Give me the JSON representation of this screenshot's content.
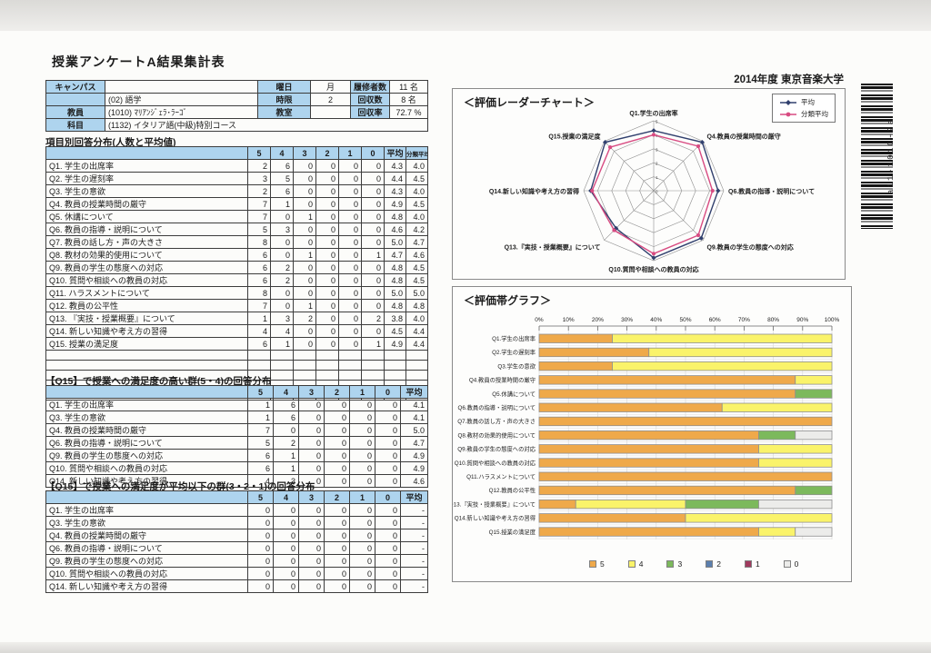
{
  "page": {
    "title": "授業アンケートA結果集計表",
    "school_year": "2014年度  東京音楽大学",
    "barcode_text": "a11-1010-2a"
  },
  "info_table": {
    "rows": [
      [
        {
          "t": "キャンパス",
          "h": 1
        },
        {
          "t": "",
          "h": 0
        },
        {
          "t": "曜日",
          "h": 1
        },
        {
          "t": "月",
          "h": 0
        },
        {
          "t": "履修者数",
          "h": 1
        },
        {
          "t": "11 名",
          "h": 0
        }
      ],
      [
        {
          "t": "",
          "h": 1
        },
        {
          "t": "(02) 語学",
          "h": 0
        },
        {
          "t": "時限",
          "h": 1
        },
        {
          "t": "2",
          "h": 0
        },
        {
          "t": "回収数",
          "h": 1
        },
        {
          "t": "8 名",
          "h": 0
        }
      ],
      [
        {
          "t": "教員",
          "h": 1
        },
        {
          "t": "(1010) ﾏﾘｱﾝｼﾞｪﾗ･ﾗｰｺﾞ",
          "h": 0
        },
        {
          "t": "教室",
          "h": 1
        },
        {
          "t": "",
          "h": 0
        },
        {
          "t": "回収率",
          "h": 1
        },
        {
          "t": "72.7 %",
          "h": 0
        }
      ],
      [
        {
          "t": "科目",
          "h": 1
        },
        {
          "t": "(1132) イタリア語(中級)特別コース",
          "h": 0,
          "span": 5
        }
      ]
    ]
  },
  "section1": {
    "title": "項目別回答分布(人数と平均値)",
    "headers": [
      "5",
      "4",
      "3",
      "2",
      "1",
      "0",
      "平均",
      "分類平均"
    ],
    "rows": [
      {
        "label": "Q1. 学生の出席率",
        "values": [
          2,
          6,
          0,
          0,
          0,
          0
        ],
        "avg": "4.3",
        "group_avg": "4.0"
      },
      {
        "label": "Q2. 学生の遅刻率",
        "values": [
          3,
          5,
          0,
          0,
          0,
          0
        ],
        "avg": "4.4",
        "group_avg": "4.5"
      },
      {
        "label": "Q3. 学生の意欲",
        "values": [
          2,
          6,
          0,
          0,
          0,
          0
        ],
        "avg": "4.3",
        "group_avg": "4.0"
      },
      {
        "label": "Q4. 教員の授業時間の厳守",
        "values": [
          7,
          1,
          0,
          0,
          0,
          0
        ],
        "avg": "4.9",
        "group_avg": "4.5"
      },
      {
        "label": "Q5. 休講について",
        "values": [
          7,
          0,
          1,
          0,
          0,
          0
        ],
        "avg": "4.8",
        "group_avg": "4.0"
      },
      {
        "label": "Q6. 教員の指導・説明について",
        "values": [
          5,
          3,
          0,
          0,
          0,
          0
        ],
        "avg": "4.6",
        "group_avg": "4.2"
      },
      {
        "label": "Q7. 教員の話し方・声の大きさ",
        "values": [
          8,
          0,
          0,
          0,
          0,
          0
        ],
        "avg": "5.0",
        "group_avg": "4.7"
      },
      {
        "label": "Q8. 教材の効果的使用について",
        "values": [
          6,
          0,
          1,
          0,
          0,
          1
        ],
        "avg": "4.7",
        "group_avg": "4.6"
      },
      {
        "label": "Q9. 教員の学生の態度への対応",
        "values": [
          6,
          2,
          0,
          0,
          0,
          0
        ],
        "avg": "4.8",
        "group_avg": "4.5"
      },
      {
        "label": "Q10. 質問や相談への教員の対応",
        "values": [
          6,
          2,
          0,
          0,
          0,
          0
        ],
        "avg": "4.8",
        "group_avg": "4.5"
      },
      {
        "label": "Q11. ハラスメントについて",
        "values": [
          8,
          0,
          0,
          0,
          0,
          0
        ],
        "avg": "5.0",
        "group_avg": "5.0"
      },
      {
        "label": "Q12. 教員の公平性",
        "values": [
          7,
          0,
          1,
          0,
          0,
          0
        ],
        "avg": "4.8",
        "group_avg": "4.8"
      },
      {
        "label": "Q13. 『実技・授業概要』について",
        "values": [
          1,
          3,
          2,
          0,
          0,
          2
        ],
        "avg": "3.8",
        "group_avg": "4.0"
      },
      {
        "label": "Q14. 新しい知識や考え方の習得",
        "values": [
          4,
          4,
          0,
          0,
          0,
          0
        ],
        "avg": "4.5",
        "group_avg": "4.4"
      },
      {
        "label": "Q15. 授業の満足度",
        "values": [
          6,
          1,
          0,
          0,
          0,
          1
        ],
        "avg": "4.9",
        "group_avg": "4.4"
      }
    ],
    "empty_rows": 5
  },
  "section2": {
    "title": "【Q15】で授業への満足度の高い群(5・4)の回答分布",
    "headers": [
      "5",
      "4",
      "3",
      "2",
      "1",
      "0",
      "平均"
    ],
    "rows": [
      {
        "label": "Q1. 学生の出席率",
        "values": [
          1,
          6,
          0,
          0,
          0,
          0
        ],
        "avg": "4.1"
      },
      {
        "label": "Q3. 学生の意欲",
        "values": [
          1,
          6,
          0,
          0,
          0,
          0
        ],
        "avg": "4.1"
      },
      {
        "label": "Q4. 教員の授業時間の厳守",
        "values": [
          7,
          0,
          0,
          0,
          0,
          0
        ],
        "avg": "5.0"
      },
      {
        "label": "Q6. 教員の指導・説明について",
        "values": [
          5,
          2,
          0,
          0,
          0,
          0
        ],
        "avg": "4.7"
      },
      {
        "label": "Q9. 教員の学生の態度への対応",
        "values": [
          6,
          1,
          0,
          0,
          0,
          0
        ],
        "avg": "4.9"
      },
      {
        "label": "Q10. 質問や相談への教員の対応",
        "values": [
          6,
          1,
          0,
          0,
          0,
          0
        ],
        "avg": "4.9"
      },
      {
        "label": "Q14. 新しい知識や考え方の習得",
        "values": [
          4,
          3,
          0,
          0,
          0,
          0
        ],
        "avg": "4.6"
      }
    ]
  },
  "section3": {
    "title": "【Q15】で授業への満足度が平均以下の群(3・2・1)の回答分布",
    "headers": [
      "5",
      "4",
      "3",
      "2",
      "1",
      "0",
      "平均"
    ],
    "rows": [
      {
        "label": "Q1. 学生の出席率",
        "values": [
          0,
          0,
          0,
          0,
          0,
          0
        ],
        "avg": "-"
      },
      {
        "label": "Q3. 学生の意欲",
        "values": [
          0,
          0,
          0,
          0,
          0,
          0
        ],
        "avg": "-"
      },
      {
        "label": "Q4. 教員の授業時間の厳守",
        "values": [
          0,
          0,
          0,
          0,
          0,
          0
        ],
        "avg": "-"
      },
      {
        "label": "Q6. 教員の指導・説明について",
        "values": [
          0,
          0,
          0,
          0,
          0,
          0
        ],
        "avg": "-"
      },
      {
        "label": "Q9. 教員の学生の態度への対応",
        "values": [
          0,
          0,
          0,
          0,
          0,
          0
        ],
        "avg": "-"
      },
      {
        "label": "Q10. 質問や相談への教員の対応",
        "values": [
          0,
          0,
          0,
          0,
          0,
          0
        ],
        "avg": "-"
      },
      {
        "label": "Q14. 新しい知識や考え方の習得",
        "values": [
          0,
          0,
          0,
          0,
          0,
          0
        ],
        "avg": "-"
      }
    ]
  },
  "chart_data": [
    {
      "type": "radar",
      "title": "＜評価レーダーチャート＞",
      "categories": [
        "Q1.学生の出席率",
        "Q4.教員の授業時間の厳守",
        "Q6.教員の指導・説明について",
        "Q9.教員の学生の態度への対応",
        "Q10.質問や相談への教員の対応",
        "Q13.『実技・授業概要』について",
        "Q14.新しい知識や考え方の習得",
        "Q15.授業の満足度"
      ],
      "axis_min": 0,
      "axis_max": 5,
      "rings": 5,
      "scale_labels": [
        "0",
        "1",
        "2",
        "3",
        "4",
        "5"
      ],
      "legend_position": "top-right",
      "series": [
        {
          "name": "平均",
          "color": "#31406e",
          "marker": "diamond",
          "values": [
            4.3,
            4.9,
            4.6,
            4.8,
            4.8,
            3.8,
            4.5,
            4.9
          ]
        },
        {
          "name": "分類平均",
          "color": "#d84b82",
          "marker": "circle",
          "values": [
            4.0,
            4.5,
            4.2,
            4.5,
            4.5,
            4.0,
            4.4,
            4.4
          ]
        }
      ]
    },
    {
      "type": "bar",
      "subtype": "horizontal-stacked-100pct",
      "title": "＜評価帯グラフ＞",
      "categories": [
        "Q1.学生の出席率",
        "Q2.学生の遅刻率",
        "Q3.学生の意欲",
        "Q4.教員の授業時間の厳守",
        "Q5.休講について",
        "Q6.教員の指導・説明について",
        "Q7.教員の話し方・声の大きさ",
        "Q8.教材の効果的使用について",
        "Q9.教員の学生の態度への対応",
        "Q10.質問や相談への教員の対応",
        "Q11.ハラスメントについて",
        "Q12.教員の公平性",
        "Q13.『実技・授業概要』について",
        "Q14.新しい知識や考え方の習得",
        "Q15.授業の満足度"
      ],
      "legend": [
        "5",
        "4",
        "3",
        "2",
        "1",
        "0"
      ],
      "colors": [
        "#efa94a",
        "#faf36a",
        "#7cb95c",
        "#5b7fae",
        "#a03a5e",
        "#ececea"
      ],
      "respondent_total": 8,
      "counts": [
        [
          2,
          6,
          0,
          0,
          0,
          0
        ],
        [
          3,
          5,
          0,
          0,
          0,
          0
        ],
        [
          2,
          6,
          0,
          0,
          0,
          0
        ],
        [
          7,
          1,
          0,
          0,
          0,
          0
        ],
        [
          7,
          0,
          1,
          0,
          0,
          0
        ],
        [
          5,
          3,
          0,
          0,
          0,
          0
        ],
        [
          8,
          0,
          0,
          0,
          0,
          0
        ],
        [
          6,
          0,
          1,
          0,
          0,
          1
        ],
        [
          6,
          2,
          0,
          0,
          0,
          0
        ],
        [
          6,
          2,
          0,
          0,
          0,
          0
        ],
        [
          8,
          0,
          0,
          0,
          0,
          0
        ],
        [
          7,
          0,
          1,
          0,
          0,
          0
        ],
        [
          1,
          3,
          2,
          0,
          0,
          2
        ],
        [
          4,
          4,
          0,
          0,
          0,
          0
        ],
        [
          6,
          1,
          0,
          0,
          0,
          1
        ]
      ],
      "x_ticks": [
        "0%",
        "10%",
        "20%",
        "30%",
        "40%",
        "50%",
        "60%",
        "70%",
        "80%",
        "90%",
        "100%"
      ],
      "xlim": [
        0,
        100
      ],
      "grid": true,
      "legend_position": "bottom"
    }
  ]
}
